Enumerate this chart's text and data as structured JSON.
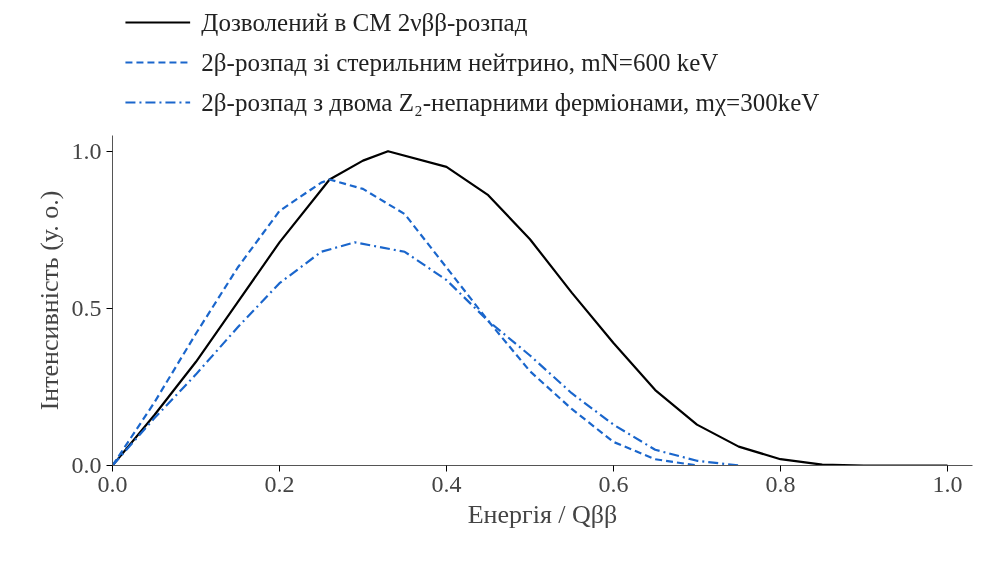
{
  "chart_data": {
    "type": "line",
    "xlabel": "Енергія / Qββ",
    "ylabel": "Інтенсивність (у. о.)",
    "xlim": [
      0,
      1.03
    ],
    "ylim": [
      0,
      1.05
    ],
    "xticks": [
      {
        "value": 0,
        "label": "0.0"
      },
      {
        "value": 0.2,
        "label": "0.2"
      },
      {
        "value": 0.4,
        "label": "0.4"
      },
      {
        "value": 0.6,
        "label": "0.6"
      },
      {
        "value": 0.8,
        "label": "0.8"
      },
      {
        "value": 1,
        "label": "1.0"
      }
    ],
    "yticks": [
      {
        "value": 0,
        "label": "0.0"
      },
      {
        "value": 0.5,
        "label": "0.5"
      },
      {
        "value": 1,
        "label": "1.0"
      }
    ],
    "grid": false,
    "legend": "top left",
    "marker": "none",
    "series": [
      {
        "name": "Дозволений в СМ 2νββ-розпад",
        "color": "#000000",
        "line_style": "solid",
        "x": [
          0,
          0.05,
          0.1,
          0.15,
          0.2,
          0.26,
          0.3,
          0.33,
          0.4,
          0.45,
          0.5,
          0.55,
          0.6,
          0.65,
          0.7,
          0.75,
          0.8,
          0.85,
          0.9,
          1.0
        ],
        "values": [
          0,
          0.16,
          0.33,
          0.52,
          0.71,
          0.91,
          0.97,
          1.0,
          0.95,
          0.86,
          0.72,
          0.55,
          0.39,
          0.24,
          0.13,
          0.06,
          0.02,
          0.003,
          0,
          0
        ]
      },
      {
        "name": "2β-розпад зі стерильним нейтрино, mN=600 keV",
        "color": "#1a66cc",
        "line_style": "dashed",
        "x": [
          0,
          0.05,
          0.1,
          0.15,
          0.2,
          0.25,
          0.26,
          0.3,
          0.35,
          0.4,
          0.45,
          0.5,
          0.55,
          0.6,
          0.65,
          0.7
        ],
        "values": [
          0,
          0.2,
          0.42,
          0.63,
          0.81,
          0.9,
          0.91,
          0.88,
          0.8,
          0.63,
          0.46,
          0.3,
          0.18,
          0.075,
          0.02,
          0
        ]
      },
      {
        "name": "2β-розпад з двома  Z₂-непарними ферміонами, mχ=300keV",
        "color": "#1a66cc",
        "line_style": "dashdot",
        "x": [
          0,
          0.05,
          0.1,
          0.15,
          0.2,
          0.25,
          0.29,
          0.35,
          0.4,
          0.45,
          0.5,
          0.55,
          0.6,
          0.65,
          0.7,
          0.75
        ],
        "values": [
          0,
          0.15,
          0.29,
          0.44,
          0.58,
          0.68,
          0.71,
          0.68,
          0.59,
          0.46,
          0.35,
          0.23,
          0.13,
          0.05,
          0.015,
          0
        ]
      }
    ]
  }
}
